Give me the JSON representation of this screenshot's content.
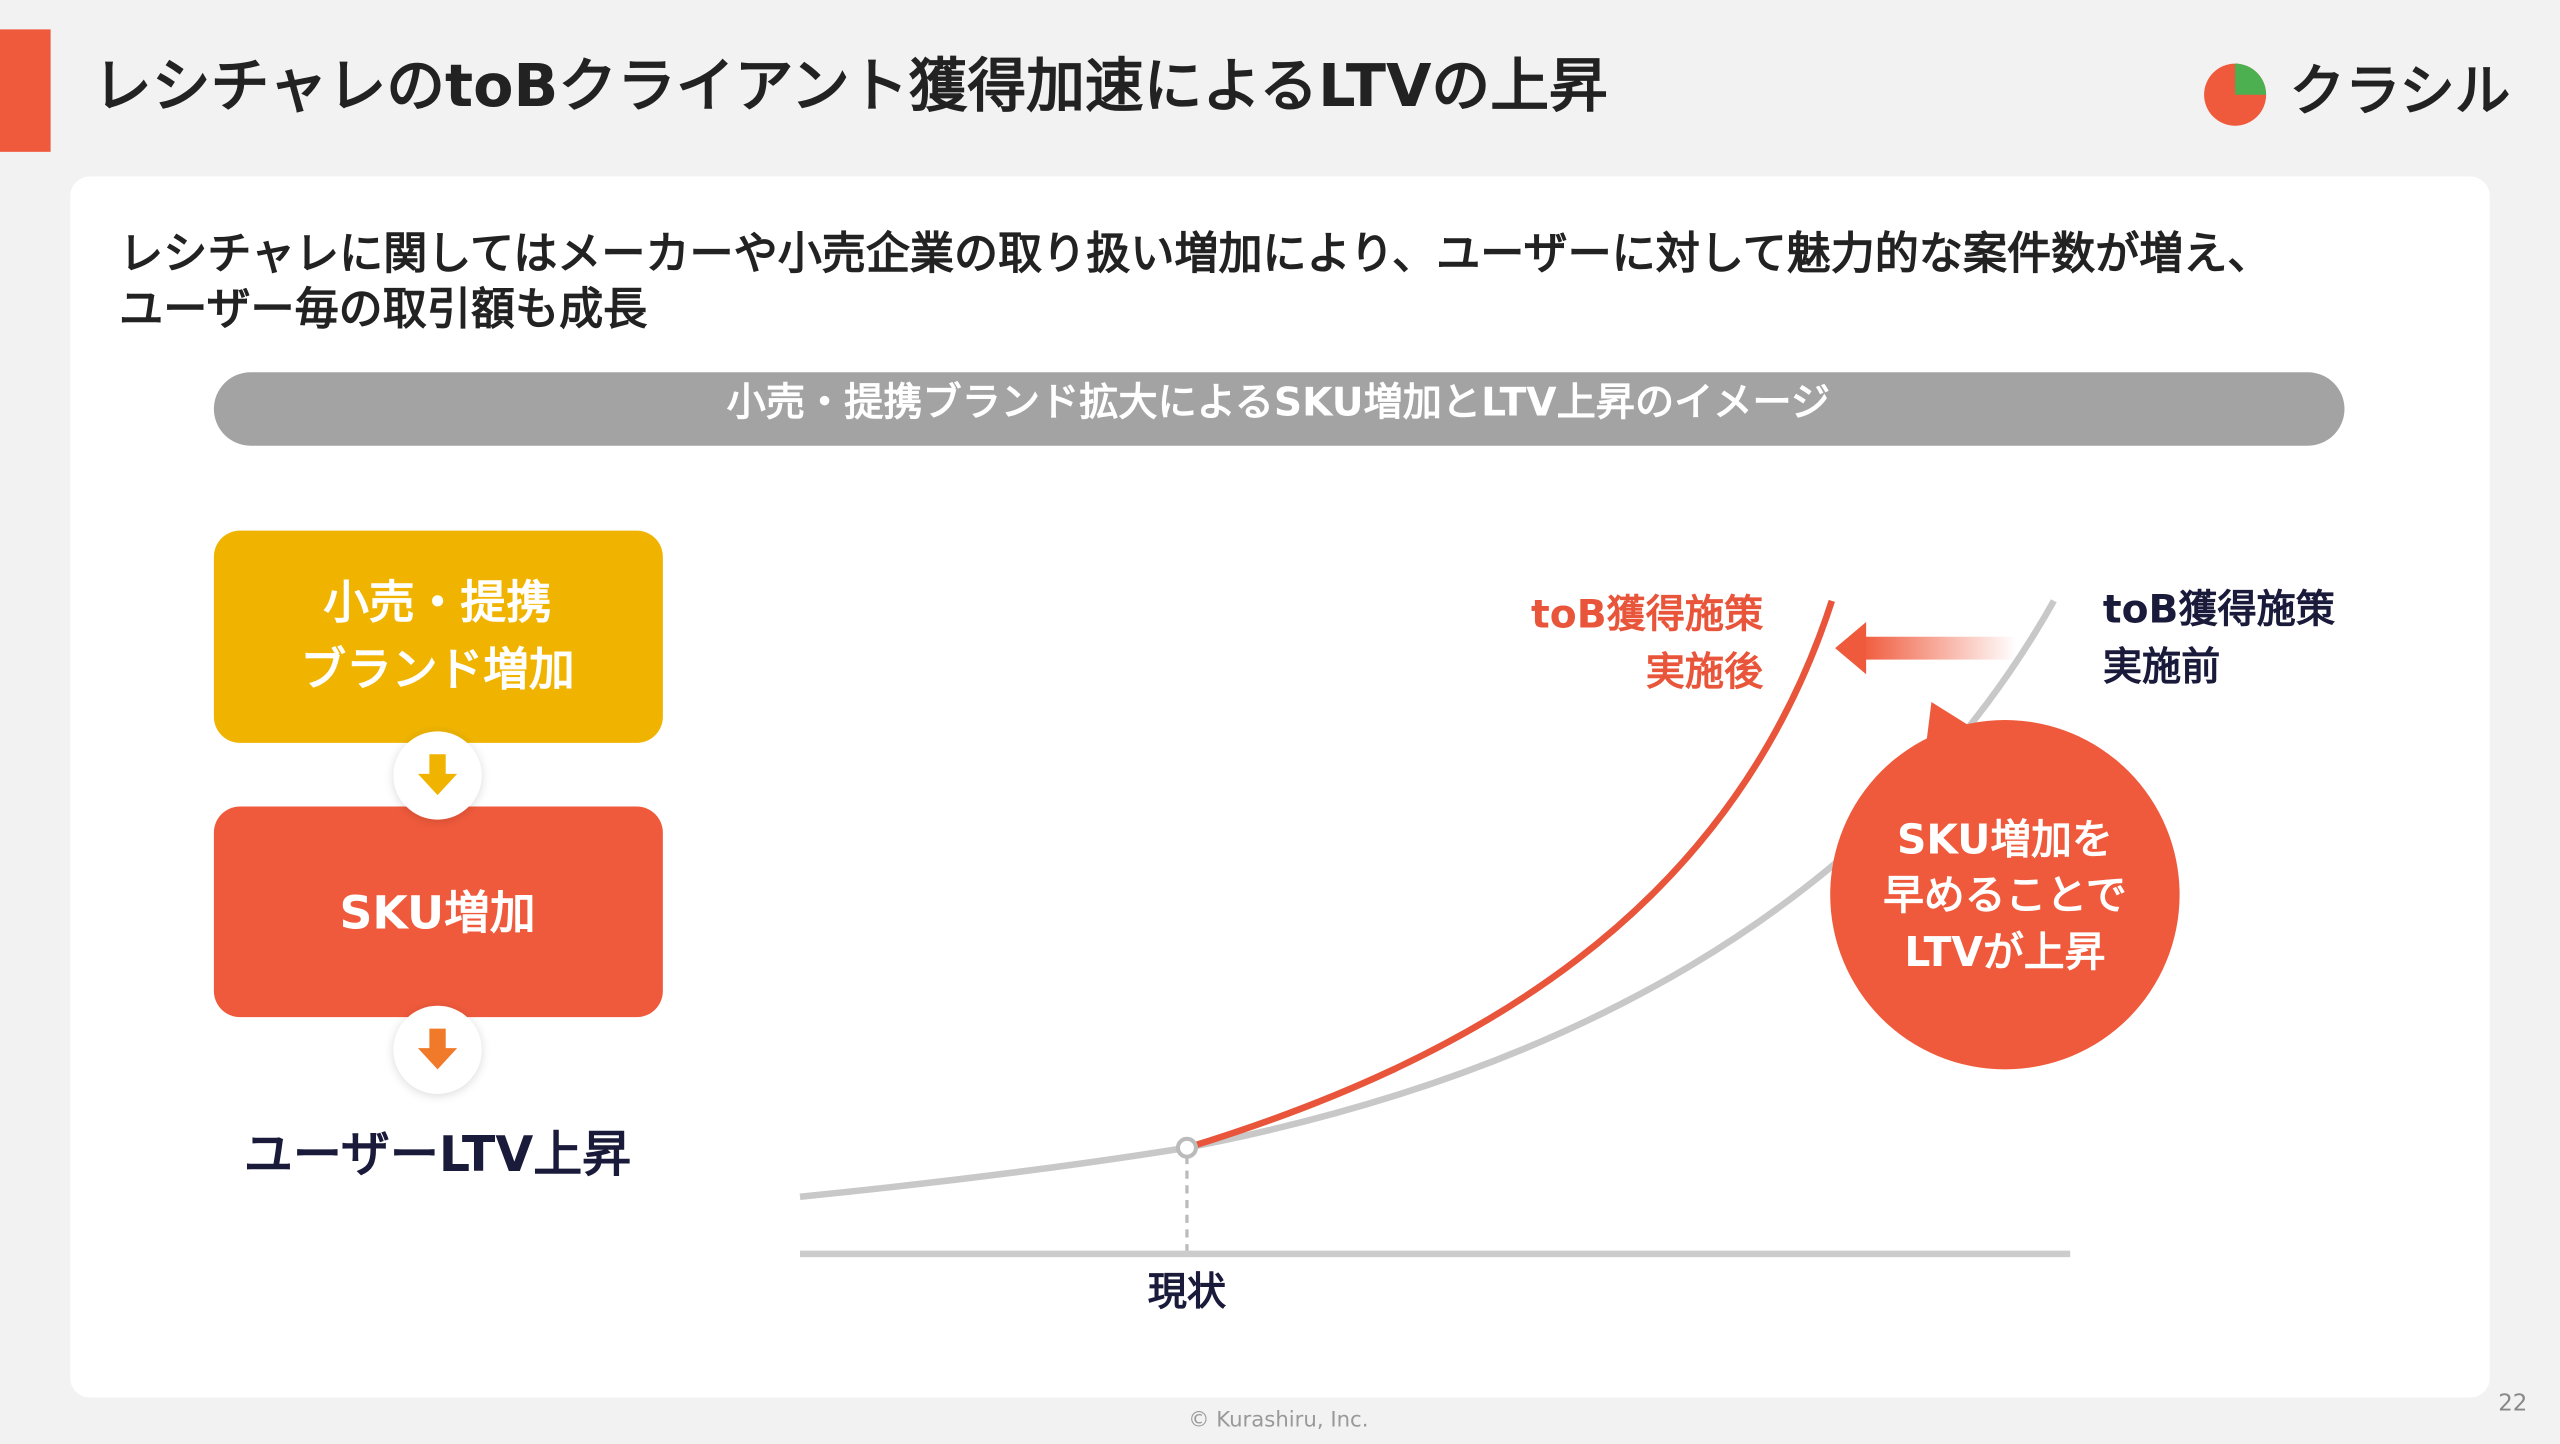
{
  "header": {
    "title": "レシチャレのtoBクライアント獲得加速によるLTVの上昇",
    "logo": "クラシル"
  },
  "lead": [
    "レシチャレに関してはメーカーや小売企業の取り扱い増加により、ユーザーに対して魅力的な案件数が増え、",
    "ユーザー毎の取引額も成長"
  ],
  "banner": "小売・提携ブランド拡大によるSKU増加とLTV上昇のイメージ",
  "flow": {
    "step1": [
      "小売・提携",
      "ブランド増加"
    ],
    "step2": "SKU増加",
    "result": "ユーザーLTV上昇"
  },
  "diagram": {
    "current": "現状",
    "after": [
      "toB獲得施策",
      "実施後"
    ],
    "before": [
      "toB獲得施策",
      "実施前"
    ],
    "bubble": [
      "SKU増加を",
      "早めることで",
      "LTVが上昇"
    ]
  },
  "footer": {
    "copyright": "© Kurashiru, Inc.",
    "page": "22"
  }
}
